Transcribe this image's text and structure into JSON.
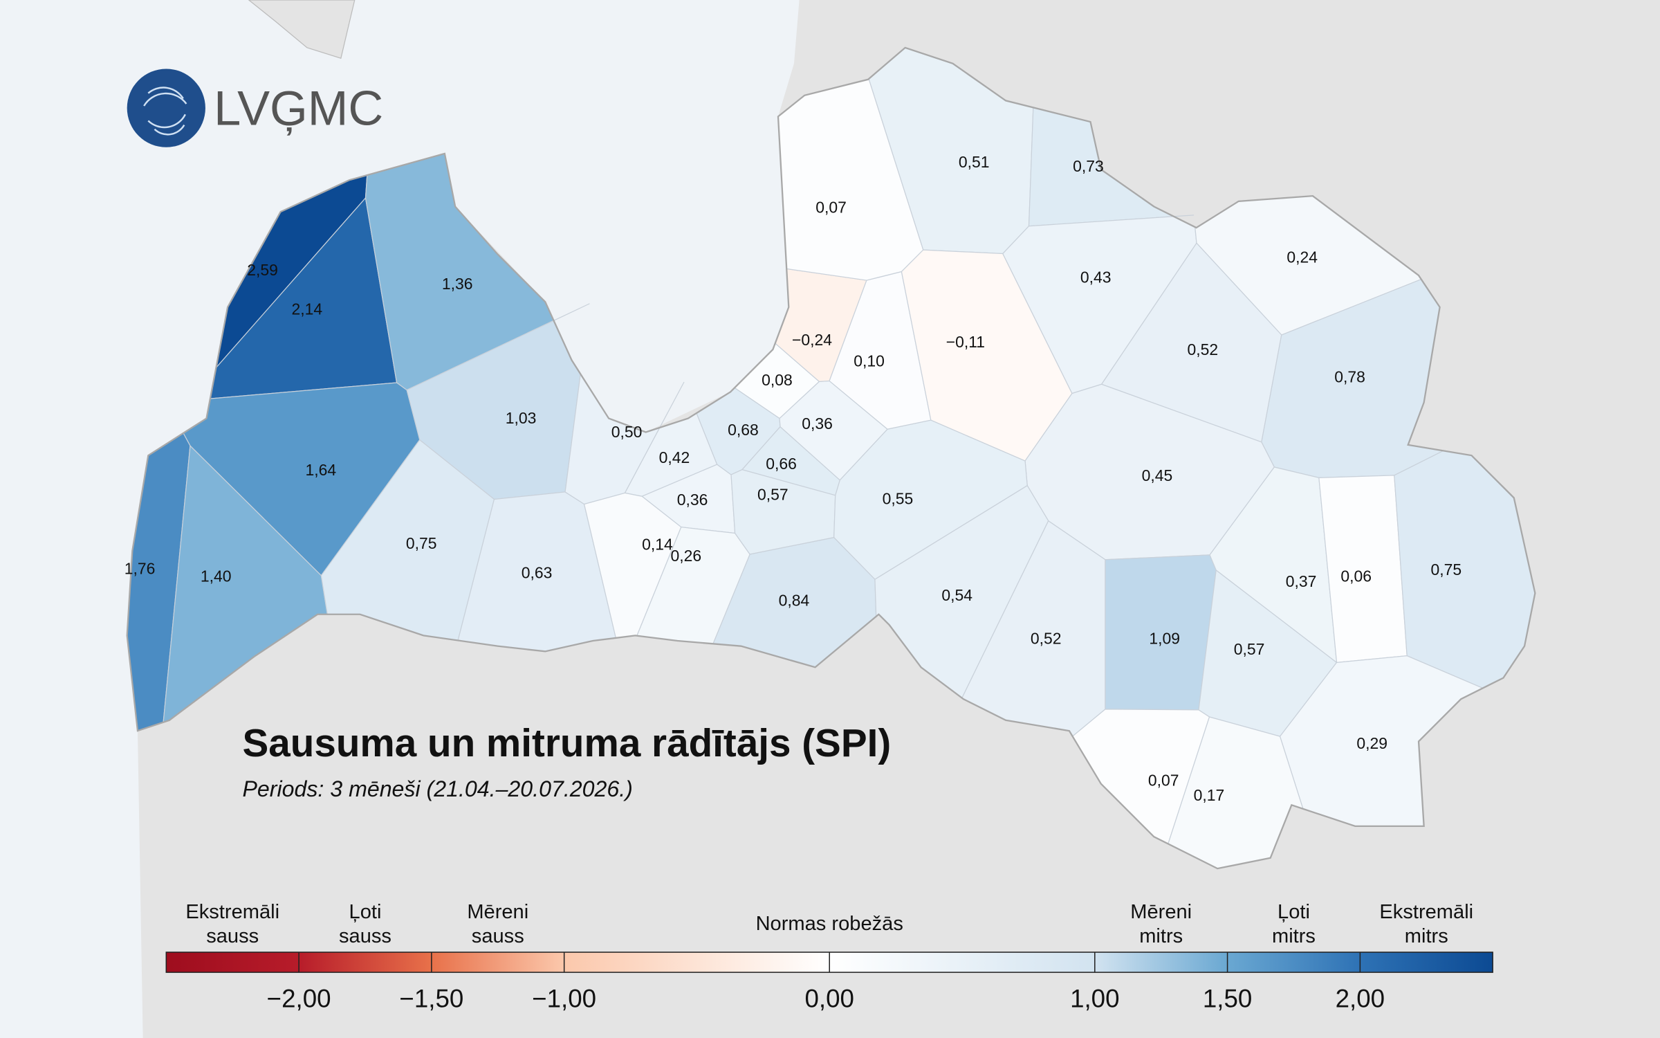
{
  "logo": "LVĢMC",
  "title": "Sausuma un mitruma rādītājs (SPI)",
  "subtitle": "Periods: 3 mēneši (21.04.–20.07.2026.)",
  "regions": [
    {
      "value": 2.59,
      "label": "2,59"
    },
    {
      "value": 2.14,
      "label": "2,14"
    },
    {
      "value": 1.36,
      "label": "1,36"
    },
    {
      "value": 1.03,
      "label": "1,03"
    },
    {
      "value": 1.64,
      "label": "1,64"
    },
    {
      "value": 1.76,
      "label": "1,76"
    },
    {
      "value": 1.4,
      "label": "1,40"
    },
    {
      "value": 0.75,
      "label": "0,75"
    },
    {
      "value": 0.63,
      "label": "0,63"
    },
    {
      "value": 0.5,
      "label": "0,50"
    },
    {
      "value": 0.42,
      "label": "0,42"
    },
    {
      "value": 0.36,
      "label": "0,36"
    },
    {
      "value": 0.14,
      "label": "0,14"
    },
    {
      "value": 0.26,
      "label": "0,26"
    },
    {
      "value": 0.68,
      "label": "0,68"
    },
    {
      "value": 0.66,
      "label": "0,66"
    },
    {
      "value": 0.57,
      "label": "0,57"
    },
    {
      "value": 0.36,
      "label": "0,36"
    },
    {
      "value": 0.08,
      "label": "0,08"
    },
    {
      "value": -0.24,
      "label": "−0,24"
    },
    {
      "value": 0.1,
      "label": "0,10"
    },
    {
      "value": 0.07,
      "label": "0,07"
    },
    {
      "value": 0.51,
      "label": "0,51"
    },
    {
      "value": 0.73,
      "label": "0,73"
    },
    {
      "value": -0.11,
      "label": "−0,11"
    },
    {
      "value": 0.43,
      "label": "0,43"
    },
    {
      "value": 0.24,
      "label": "0,24"
    },
    {
      "value": 0.52,
      "label": "0,52"
    },
    {
      "value": 0.78,
      "label": "0,78"
    },
    {
      "value": 0.45,
      "label": "0,45"
    },
    {
      "value": 0.55,
      "label": "0,55"
    },
    {
      "value": 0.84,
      "label": "0,84"
    },
    {
      "value": 0.54,
      "label": "0,54"
    },
    {
      "value": 0.52,
      "label": "0,52"
    },
    {
      "value": 1.09,
      "label": "1,09"
    },
    {
      "value": 0.57,
      "label": "0,57"
    },
    {
      "value": 0.37,
      "label": "0,37"
    },
    {
      "value": 0.06,
      "label": "0,06"
    },
    {
      "value": 0.75,
      "label": "0,75"
    },
    {
      "value": 0.29,
      "label": "0,29"
    },
    {
      "value": 0.07,
      "label": "0,07"
    },
    {
      "value": 0.17,
      "label": "0,17"
    }
  ],
  "legend": {
    "categories": [
      [
        "Ekstremāli",
        "sauss"
      ],
      [
        "Ļoti",
        "sauss"
      ],
      [
        "Mēreni",
        "sauss"
      ],
      [
        "Normas robežās"
      ],
      [
        "Mēreni",
        "mitrs"
      ],
      [
        "Ļoti",
        "mitrs"
      ],
      [
        "Ekstremāli",
        "mitrs"
      ]
    ],
    "ticks": [
      {
        "value": -2,
        "label": "−2,00"
      },
      {
        "value": -1.5,
        "label": "−1,50"
      },
      {
        "value": -1,
        "label": "−1,00"
      },
      {
        "value": 0,
        "label": "0,00"
      },
      {
        "value": 1,
        "label": "1,00"
      },
      {
        "value": 1.5,
        "label": "1,50"
      },
      {
        "value": 2,
        "label": "2,00"
      }
    ],
    "color_stops": [
      {
        "value": -2.5,
        "color": "#9e0d1e"
      },
      {
        "value": -2,
        "color": "#b71c2a"
      },
      {
        "value": -1.5,
        "color": "#e8714a"
      },
      {
        "value": -1,
        "color": "#fbc8ac"
      },
      {
        "value": 0,
        "color": "#ffffff"
      },
      {
        "value": 1,
        "color": "#d2e3f0"
      },
      {
        "value": 1.5,
        "color": "#6aa8d2"
      },
      {
        "value": 2,
        "color": "#2e72b5"
      },
      {
        "value": 2.5,
        "color": "#0c4a93"
      }
    ]
  }
}
